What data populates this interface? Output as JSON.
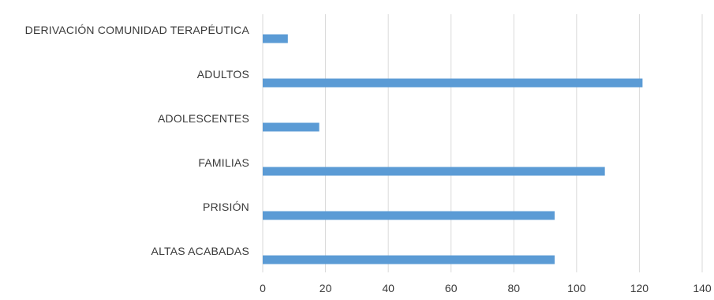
{
  "chart_data": {
    "type": "bar",
    "orientation": "horizontal",
    "title": "",
    "xlabel": "",
    "ylabel": "",
    "categories": [
      "DERIVACIÓN COMUNIDAD TERAPÉUTICA",
      "ADULTOS",
      "ADOLESCENTES",
      "FAMILIAS",
      "PRISIÓN",
      "ALTAS ACABADAS"
    ],
    "values": [
      8,
      121,
      18,
      109,
      93,
      93
    ],
    "xlim": [
      0,
      140
    ],
    "xticks": [
      "0",
      "20",
      "40",
      "60",
      "80",
      "100",
      "120",
      "140"
    ],
    "grid": "vertical",
    "legend": "none",
    "bar_color": "#5b9bd5",
    "grid_color": "#d9d9d9"
  }
}
